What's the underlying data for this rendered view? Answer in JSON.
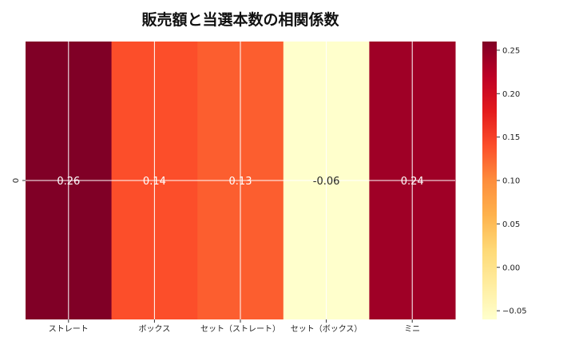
{
  "chart_data": {
    "type": "heatmap",
    "title": "販売額と当選本数の相関係数",
    "row_labels": [
      "0"
    ],
    "categories": [
      "ストレート",
      "ボックス",
      "セット（ストレート）",
      "セット（ボックス）",
      "ミニ"
    ],
    "values": [
      [
        0.26,
        0.14,
        0.13,
        -0.06,
        0.24
      ]
    ],
    "value_labels": [
      "0.26",
      "0.14",
      "0.13",
      "-0.06",
      "0.24"
    ],
    "colormap": "YlOrRd",
    "vmin": -0.06,
    "vmax": 0.26,
    "colorbar": {
      "ticks": [
        0.25,
        0.2,
        0.15,
        0.1,
        0.05,
        0.0,
        -0.05
      ],
      "tick_labels": [
        "0.25",
        "0.20",
        "0.15",
        "0.10",
        "0.05",
        "0.00",
        "−0.05"
      ]
    },
    "grid": true,
    "grid_color": "#ffffff"
  }
}
